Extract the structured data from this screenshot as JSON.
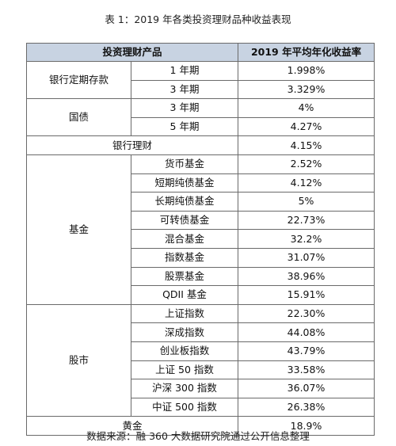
{
  "caption": "表 1：2019 年各类投资理财品种收益表现",
  "header": {
    "product": "投资理财产品",
    "yield": "2019 年平均年化收益率"
  },
  "groups": [
    {
      "category": "银行定期存款",
      "rows": [
        {
          "sub": "1 年期",
          "value": "1.998%"
        },
        {
          "sub": "3 年期",
          "value": "3.329%"
        }
      ]
    },
    {
      "category": "国债",
      "rows": [
        {
          "sub": "3 年期",
          "value": "4%"
        },
        {
          "sub": "5 年期",
          "value": "4.27%"
        }
      ]
    },
    {
      "category": "银行理财",
      "rows": [
        {
          "sub": "",
          "value": "4.15%"
        }
      ]
    },
    {
      "category": "基金",
      "rows": [
        {
          "sub": "货币基金",
          "value": "2.52%"
        },
        {
          "sub": "短期纯债基金",
          "value": "4.12%"
        },
        {
          "sub": "长期纯债基金",
          "value": "5%"
        },
        {
          "sub": "可转债基金",
          "value": "22.73%"
        },
        {
          "sub": "混合基金",
          "value": "32.2%"
        },
        {
          "sub": "指数基金",
          "value": "31.07%"
        },
        {
          "sub": "股票基金",
          "value": "38.96%"
        },
        {
          "sub": "QDII 基金",
          "value": "15.91%"
        }
      ]
    },
    {
      "category": "股市",
      "rows": [
        {
          "sub": "上证指数",
          "value": "22.30%"
        },
        {
          "sub": "深成指数",
          "value": "44.08%"
        },
        {
          "sub": "创业板指数",
          "value": "43.79%"
        },
        {
          "sub": "上证 50 指数",
          "value": "33.58%"
        },
        {
          "sub": "沪深 300 指数",
          "value": "36.07%"
        },
        {
          "sub": "中证 500 指数",
          "value": "26.38%"
        }
      ]
    },
    {
      "category": "黄金",
      "rows": [
        {
          "sub": "",
          "value": "18.9%"
        }
      ]
    }
  ],
  "source": "数据来源：融 360 大数据研究院通过公开信息整理"
}
